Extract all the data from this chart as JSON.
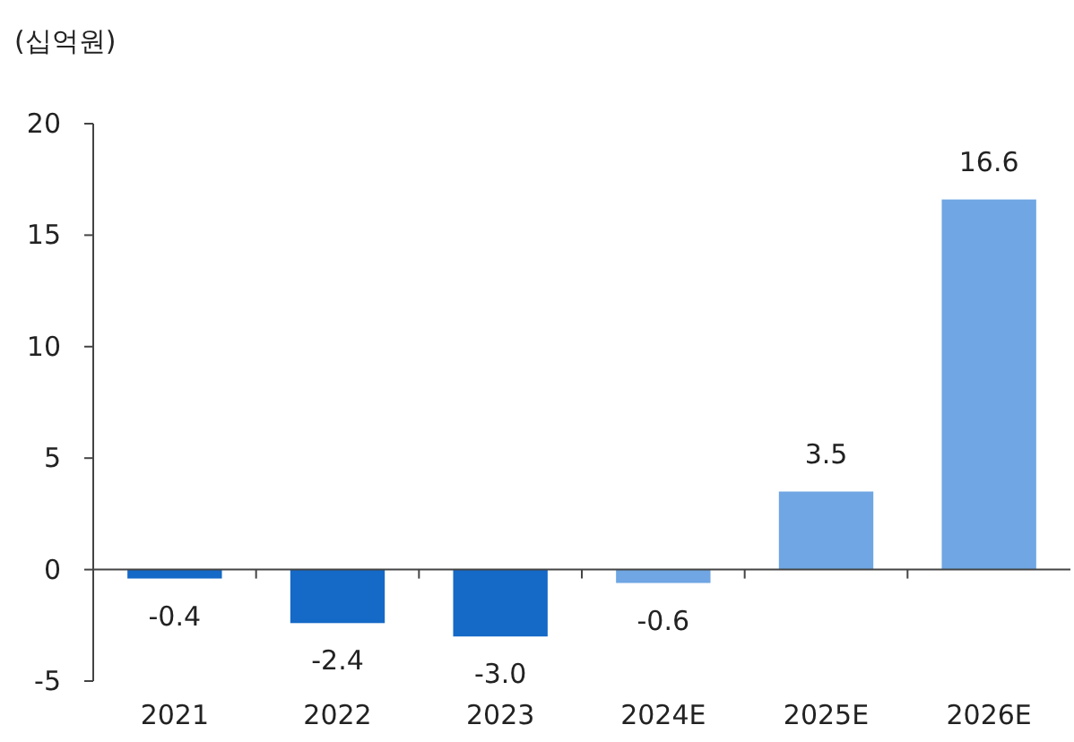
{
  "chart_data": {
    "type": "bar",
    "ylabel": "(십억원)",
    "categories": [
      "2021",
      "2022",
      "2023",
      "2024E",
      "2025E",
      "2026E"
    ],
    "values": [
      -0.4,
      -2.4,
      -3.0,
      -0.6,
      3.5,
      16.6
    ],
    "colors": [
      "#1569c7",
      "#1569c7",
      "#1569c7",
      "#6fa6e3",
      "#6fa6e3",
      "#6fa6e3"
    ],
    "value_labels": [
      "-0.4",
      "-2.4",
      "-3.0",
      "-0.6",
      "3.5",
      "16.6"
    ],
    "ylim": [
      -5,
      20
    ],
    "yticks": [
      -5,
      0,
      5,
      10,
      15,
      20
    ]
  }
}
